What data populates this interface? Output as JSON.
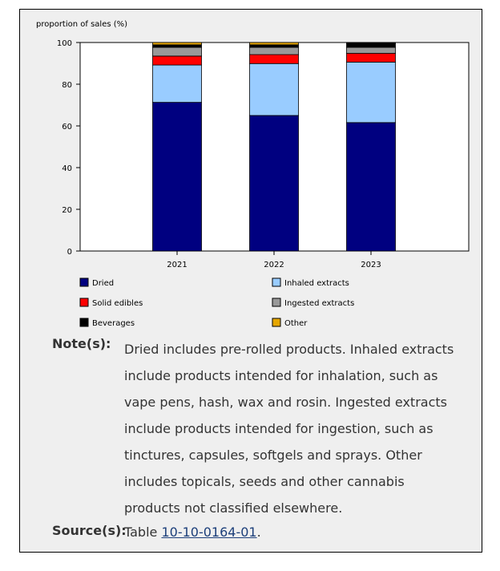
{
  "chart_data": {
    "type": "bar",
    "stacked": true,
    "ylabel": "proportion of sales (%)",
    "xlabel": "",
    "ylim": [
      0,
      100
    ],
    "yticks": [
      0,
      20,
      40,
      60,
      80,
      100
    ],
    "categories": [
      "2021",
      "2022",
      "2023"
    ],
    "grid": false,
    "legend_position": "bottom",
    "series": [
      {
        "name": "Dried",
        "color": "#000080",
        "values": [
          71.3,
          65.0,
          61.6
        ]
      },
      {
        "name": "Inhaled extracts",
        "color": "#99ccff",
        "values": [
          17.9,
          24.9,
          29.0
        ]
      },
      {
        "name": "Solid edibles",
        "color": "#ff0000",
        "values": [
          4.3,
          4.3,
          4.2
        ]
      },
      {
        "name": "Ingested extracts",
        "color": "#999999",
        "values": [
          4.2,
          3.5,
          2.9
        ]
      },
      {
        "name": "Beverages",
        "color": "#000000",
        "values": [
          1.2,
          1.2,
          2.0
        ]
      },
      {
        "name": "Other",
        "color": "#e6a700",
        "values": [
          1.1,
          1.1,
          0.3
        ]
      }
    ],
    "legend_order": [
      "Dried",
      "Inhaled extracts",
      "Solid edibles",
      "Ingested extracts",
      "Beverages",
      "Other"
    ]
  },
  "notes": {
    "label": "Note(s):",
    "text": "Dried includes pre-rolled products. Inhaled extracts include products intended for inhalation, such as vape pens, hash, wax and rosin. Ingested extracts include products intended for ingestion, such as tinctures, capsules, softgels and sprays. Other includes topicals, seeds and other cannabis products not classified elsewhere."
  },
  "source": {
    "label": "Source(s):",
    "prefix": "Table ",
    "link_text": "10-10-0164-01",
    "suffix": "."
  }
}
